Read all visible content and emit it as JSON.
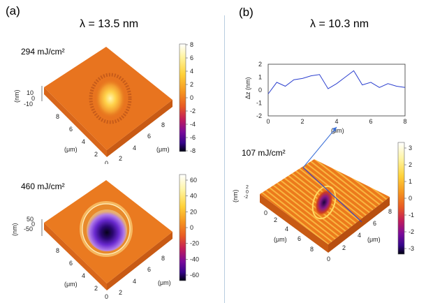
{
  "panel_a": {
    "label": "(a)",
    "wavelength": "λ = 13.5 nm",
    "plot_top": {
      "fluence": "294 mJ/cm²",
      "z_axis_label": "(nm)",
      "z_ticks": [
        "10",
        "0",
        "-10"
      ],
      "x_axis_label": "(μm)",
      "y_axis_label": "(μm)",
      "x_ticks": [
        "0",
        "2",
        "4",
        "6",
        "8"
      ],
      "y_ticks": [
        "0",
        "2",
        "4",
        "6",
        "8"
      ],
      "colorbar_ticks": [
        "8",
        "6",
        "4",
        "2",
        "0",
        "-2",
        "-4",
        "-6",
        "-8"
      ]
    },
    "plot_bottom": {
      "fluence": "460 mJ/cm²",
      "z_axis_label": "(nm)",
      "z_ticks": [
        "50",
        "0",
        "-50"
      ],
      "x_axis_label": "(μm)",
      "y_axis_label": "(μm)",
      "x_ticks": [
        "0",
        "2",
        "4",
        "6",
        "8"
      ],
      "y_ticks": [
        "0",
        "2",
        "4",
        "6",
        "8"
      ],
      "colorbar_ticks": [
        "60",
        "40",
        "20",
        "0",
        "-20",
        "-40",
        "-60"
      ]
    }
  },
  "panel_b": {
    "label": "(b)",
    "wavelength": "λ = 10.3 nm",
    "profile": {
      "y_axis_label": "Δz (nm)",
      "x_axis_label": "(μm)",
      "x_ticks": [
        "0",
        "2",
        "4",
        "6",
        "8"
      ],
      "y_ticks": [
        "2",
        "1",
        "0",
        "-1",
        "-2"
      ]
    },
    "plot_3d": {
      "fluence": "107 mJ/cm²",
      "z_axis_label": "(nm)",
      "z_ticks": [
        "2",
        "0",
        "-2"
      ],
      "x_axis_label": "(μm)",
      "y_axis_label": "(μm)",
      "x_ticks": [
        "0",
        "2",
        "4",
        "6",
        "8"
      ],
      "y_ticks": [
        "0",
        "2",
        "4",
        "6",
        "8"
      ],
      "colorbar_ticks": [
        "3",
        "2",
        "1",
        "0",
        "-1",
        "-2",
        "-3"
      ]
    }
  },
  "colors": {
    "divider": "#b8cde0",
    "profile_line": "#2b3fcf",
    "arrow": "#3a6fd8"
  },
  "chart_data": [
    {
      "type": "line",
      "x": [
        0,
        0.5,
        1,
        1.5,
        2,
        2.5,
        3,
        3.5,
        4,
        4.5,
        5,
        5.5,
        6,
        6.5,
        7,
        7.5,
        8
      ],
      "series": [
        {
          "values": [
            -0.3,
            0.6,
            0.3,
            0.8,
            0.9,
            1.1,
            1.2,
            0.1,
            0.5,
            1.0,
            1.5,
            0.4,
            0.6,
            0.2,
            0.5,
            0.3,
            0.2
          ]
        }
      ],
      "xlabel": "(μm)",
      "ylabel": "Δz (nm)",
      "xlim": [
        0,
        8
      ],
      "ylim": [
        -2,
        2
      ]
    }
  ]
}
